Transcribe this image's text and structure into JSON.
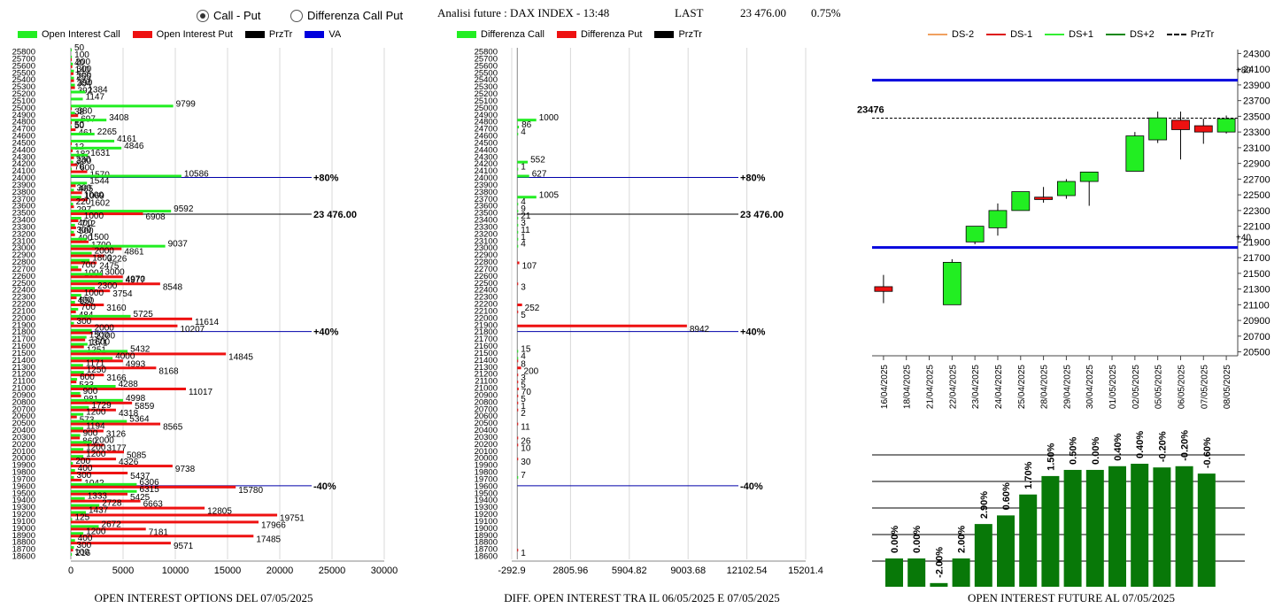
{
  "header": {
    "radio_call_put": "Call - Put",
    "radio_diff": "Differenza Call Put",
    "title": "Analisi future : DAX INDEX - 13:48",
    "last_label": "LAST",
    "last_value": "23 476.00",
    "change_pct": "0.75%",
    "selected": "call_put"
  },
  "legends": {
    "left": [
      {
        "label": "Open Interest Call",
        "color": "#22ee22",
        "kind": "box"
      },
      {
        "label": "Open Interest Put",
        "color": "#ee1111",
        "kind": "box"
      },
      {
        "label": "PrzTr",
        "color": "#000000",
        "kind": "box"
      },
      {
        "label": "VA",
        "color": "#0000dd",
        "kind": "box"
      }
    ],
    "middle": [
      {
        "label": "Differenza Call",
        "color": "#22ee22",
        "kind": "box"
      },
      {
        "label": "Differenza Put",
        "color": "#ee1111",
        "kind": "box"
      },
      {
        "label": "PrzTr",
        "color": "#000000",
        "kind": "box"
      }
    ],
    "right": [
      {
        "label": "DS-2",
        "color": "#f0a060",
        "kind": "line"
      },
      {
        "label": "DS-1",
        "color": "#dd1111",
        "kind": "line"
      },
      {
        "label": "DS+1",
        "color": "#33ee33",
        "kind": "line"
      },
      {
        "label": "DS+2",
        "color": "#118811",
        "kind": "line"
      },
      {
        "label": "PrzTr",
        "color": "#000000",
        "kind": "dash"
      }
    ]
  },
  "captions": {
    "left": "OPEN INTEREST OPTIONS DEL 07/05/2025",
    "middle": "DIFF. OPEN INTEREST TRA IL 06/05/2025 E 07/05/2025",
    "right": "OPEN INTEREST FUTURE AL 07/05/2025"
  },
  "chart_data": [
    {
      "id": "oi_options",
      "type": "bar",
      "orientation": "horizontal",
      "strikes": [
        25800,
        25700,
        25600,
        25500,
        25400,
        25300,
        25200,
        25100,
        25000,
        24900,
        24800,
        24700,
        24600,
        24500,
        24400,
        24300,
        24200,
        24100,
        24000,
        23900,
        23800,
        23700,
        23600,
        23500,
        23400,
        23300,
        23200,
        23100,
        23000,
        22900,
        22800,
        22700,
        22600,
        22500,
        22400,
        22300,
        22200,
        22100,
        22000,
        21900,
        21800,
        21700,
        21600,
        21500,
        21400,
        21300,
        21200,
        21100,
        21000,
        20900,
        20800,
        20700,
        20600,
        20500,
        20400,
        20300,
        20200,
        20100,
        20000,
        19900,
        19800,
        19700,
        19600,
        19500,
        19400,
        19300,
        19200,
        19100,
        19000,
        18900,
        18800,
        18700,
        18600
      ],
      "series": [
        {
          "name": "Open Interest Call",
          "color": "#22ee22",
          "values": [
            50,
            100,
            200,
            300,
            300,
            390,
            1384,
            1147,
            9799,
            380,
            3408,
            50,
            2265,
            4161,
            4846,
            1631,
            230,
            70,
            10586,
            1544,
            300,
            1000,
            220,
            9592,
            1000,
            400,
            300,
            1500,
            9037,
            2000,
            1800,
            700,
            3000,
            4970,
            2300,
            1000,
            400,
            700,
            5725,
            300,
            2000,
            1500,
            1600,
            5432,
            4000,
            1171,
            1250,
            600,
            4288,
            900,
            4998,
            1729,
            1200,
            5364,
            1194,
            900,
            2000,
            1200,
            1200,
            200,
            400,
            300,
            6306,
            6315,
            1333,
            2728,
            1437,
            125,
            2672,
            1200,
            400,
            300,
            100
          ]
        },
        {
          "name": "Open Interest Put",
          "color": "#ee1111",
          "values": [
            0,
            40,
            140,
            255,
            304,
            392,
            0,
            0,
            38,
            697,
            50,
            461,
            0,
            12,
            182,
            300,
            600,
            1570,
            0,
            465,
            1069,
            1602,
            297,
            6908,
            712,
            500,
            400,
            1700,
            4861,
            3226,
            2475,
            1004,
            4977,
            8548,
            3754,
            550,
            3160,
            484,
            11614,
            10207,
            2100,
            1371,
            1251,
            14845,
            4993,
            8168,
            3166,
            533,
            11017,
            981,
            5859,
            4318,
            573,
            8565,
            3126,
            860,
            3177,
            5085,
            4326,
            9738,
            5437,
            1042,
            15780,
            5425,
            6663,
            12805,
            19751,
            17966,
            7181,
            17485,
            9571,
            216,
            0
          ]
        }
      ],
      "vlines": [
        {
          "strike": 24000,
          "label": "+80%",
          "color": "#0000aa"
        },
        {
          "strike": 23476,
          "label": "23 476.00",
          "color": "#000000"
        },
        {
          "strike": 21800,
          "label": "+40%",
          "color": "#0000aa"
        },
        {
          "strike": 19600,
          "label": "-40%",
          "color": "#0000aa"
        }
      ],
      "x_ticks": [
        "0",
        "5000",
        "10000",
        "15000",
        "20000",
        "25000",
        "30000"
      ],
      "xlim": [
        0,
        30000
      ]
    },
    {
      "id": "diff_oi",
      "type": "bar",
      "orientation": "horizontal",
      "strikes": [
        25800,
        25700,
        25600,
        25500,
        25400,
        25300,
        25200,
        25100,
        25000,
        24900,
        24800,
        24700,
        24600,
        24500,
        24400,
        24300,
        24200,
        24100,
        24000,
        23900,
        23800,
        23700,
        23600,
        23500,
        23400,
        23300,
        23200,
        23100,
        23000,
        22900,
        22800,
        22700,
        22600,
        22500,
        22400,
        22300,
        22200,
        22100,
        22000,
        21900,
        21800,
        21700,
        21600,
        21500,
        21400,
        21300,
        21200,
        21100,
        21000,
        20900,
        20800,
        20700,
        20600,
        20500,
        20400,
        20300,
        20200,
        20100,
        20000,
        19900,
        19800,
        19700,
        19600,
        19500,
        19400,
        19300,
        19200,
        19100,
        19000,
        18900,
        18800,
        18700,
        18600
      ],
      "series": [
        {
          "name": "Differenza Call",
          "color": "#22ee22",
          "values": [
            0,
            0,
            0,
            0,
            0,
            0,
            0,
            0,
            0,
            0,
            1000,
            86,
            4,
            0,
            0,
            0,
            552,
            1,
            627,
            0,
            0,
            1005,
            4,
            9,
            21,
            3,
            11,
            1,
            4,
            0,
            0,
            0,
            0,
            0,
            0,
            0,
            0,
            0,
            0,
            0,
            0,
            0,
            0,
            15,
            4,
            0,
            0,
            0,
            0,
            0,
            0,
            0,
            0,
            0,
            0,
            0,
            0,
            0,
            0,
            0,
            0,
            7,
            0,
            0,
            0,
            0,
            0,
            0,
            0,
            0,
            0,
            0,
            0
          ]
        },
        {
          "name": "Differenza Put",
          "color": "#ee1111",
          "values": [
            0,
            0,
            0,
            0,
            0,
            0,
            0,
            0,
            0,
            0,
            0,
            0,
            0,
            0,
            0,
            0,
            0,
            0,
            0,
            0,
            0,
            0,
            0,
            0,
            0,
            0,
            0,
            0,
            0,
            0,
            107,
            0,
            0,
            3,
            0,
            0,
            252,
            5,
            0,
            8942,
            0,
            0,
            0,
            0,
            8,
            200,
            3,
            5,
            70,
            5,
            1,
            2,
            0,
            11,
            0,
            26,
            10,
            0,
            30,
            0,
            0,
            0,
            0,
            0,
            0,
            0,
            0,
            0,
            0,
            0,
            0,
            1,
            0
          ]
        }
      ],
      "vlines": [
        {
          "strike": 24000,
          "label": "+80%",
          "color": "#0000aa"
        },
        {
          "strike": 23476,
          "label": "23 476.00",
          "color": "#000000"
        },
        {
          "strike": 21800,
          "label": "+40%",
          "color": "#0000aa"
        },
        {
          "strike": 19600,
          "label": "-40%",
          "color": "#0000aa"
        }
      ],
      "x_ticks": [
        "-292.9",
        "2805.96",
        "5904.82",
        "9003.68",
        "12102.54",
        "15201.4"
      ],
      "xlim": [
        -292.9,
        15201.4
      ]
    },
    {
      "id": "future_candles",
      "type": "candlestick",
      "dates": [
        "16/04/2025",
        "18/04/2025",
        "21/04/2025",
        "22/04/2025",
        "23/04/2025",
        "24/04/2025",
        "25/04/2025",
        "28/04/2025",
        "29/04/2025",
        "30/04/2025",
        "01/05/2025",
        "02/05/2025",
        "05/05/2025",
        "06/05/2025",
        "07/05/2025",
        "08/05/2025"
      ],
      "candles": [
        {
          "date": "16/04/2025",
          "open": 21330,
          "close": 21270,
          "high": 21480,
          "low": 21120
        },
        {
          "date": "22/04/2025",
          "open": 21100,
          "close": 21640,
          "high": 21680,
          "low": 21100
        },
        {
          "date": "23/04/2025",
          "open": 21900,
          "close": 22100,
          "high": 22100,
          "low": 21870
        },
        {
          "date": "24/04/2025",
          "open": 22080,
          "close": 22300,
          "high": 22390,
          "low": 21980
        },
        {
          "date": "25/04/2025",
          "open": 22300,
          "close": 22540,
          "high": 22540,
          "low": 22300
        },
        {
          "date": "28/04/2025",
          "open": 22470,
          "close": 22440,
          "high": 22600,
          "low": 22400
        },
        {
          "date": "29/04/2025",
          "open": 22490,
          "close": 22670,
          "high": 22700,
          "low": 22450
        },
        {
          "date": "30/04/2025",
          "open": 22670,
          "close": 22790,
          "high": 22790,
          "low": 22360
        },
        {
          "date": "02/05/2025",
          "open": 22800,
          "close": 23250,
          "high": 23300,
          "low": 22800
        },
        {
          "date": "05/05/2025",
          "open": 23200,
          "close": 23480,
          "high": 23560,
          "low": 23160
        },
        {
          "date": "06/05/2025",
          "open": 23450,
          "close": 23330,
          "high": 23560,
          "low": 22950
        },
        {
          "date": "07/05/2025",
          "open": 23380,
          "close": 23300,
          "high": 23470,
          "low": 23150
        },
        {
          "date": "08/05/2025",
          "open": 23300,
          "close": 23470,
          "high": 23510,
          "low": 23280
        }
      ],
      "hlines": [
        {
          "value": 23960,
          "label": "+80",
          "color": "#0000dd"
        },
        {
          "value": 21830,
          "label": "+40",
          "color": "#0000dd"
        },
        {
          "value": 23476,
          "label": "23476",
          "color": "#000000",
          "dashed": true
        }
      ],
      "y_ticks": [
        "24300",
        "24100",
        "23900",
        "23700",
        "23500",
        "23300",
        "23100",
        "22900",
        "22700",
        "22500",
        "22300",
        "22100",
        "21900",
        "21700",
        "21500",
        "21300",
        "21100",
        "20900",
        "20700",
        "20500"
      ],
      "ylim": [
        20450,
        24350
      ]
    },
    {
      "id": "future_oi_pct",
      "type": "bar",
      "labels": [
        "0.00%",
        "0.00%",
        "-2.00%",
        "2.00%",
        "2.90%",
        "0.60%",
        "1.70%",
        "1.50%",
        "0.50%",
        "0.00%",
        "0.40%",
        "0.40%",
        "-0.20%",
        "-0.20%",
        "-0.60%"
      ],
      "values": [
        0.23,
        0.23,
        0.03,
        0.23,
        0.51,
        0.58,
        0.75,
        0.9,
        0.95,
        0.95,
        0.98,
        1.0,
        0.97,
        0.98,
        0.92
      ],
      "color": "#087808"
    }
  ]
}
